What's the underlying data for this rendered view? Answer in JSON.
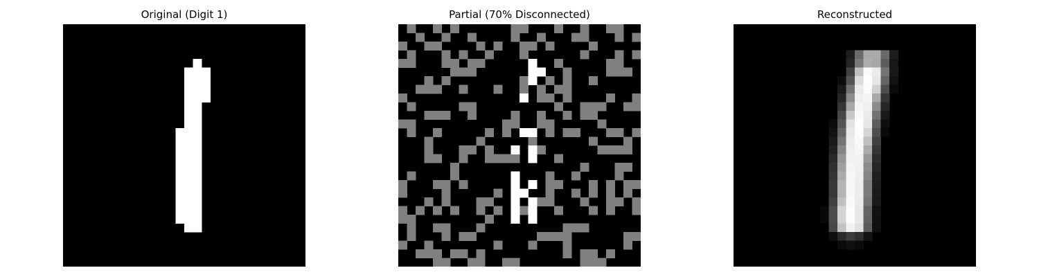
{
  "figure": {
    "panels": [
      {
        "title": "Original (Digit 1)",
        "kind": "binary-mask",
        "grid_size": 28,
        "cells": [
          [
            4,
            15,
            15
          ],
          [
            5,
            14,
            16
          ],
          [
            6,
            14,
            16
          ],
          [
            7,
            14,
            16
          ],
          [
            8,
            14,
            16
          ],
          [
            9,
            14,
            15
          ],
          [
            10,
            14,
            15
          ],
          [
            11,
            14,
            15
          ],
          [
            12,
            13,
            15
          ],
          [
            13,
            13,
            15
          ],
          [
            14,
            13,
            15
          ],
          [
            15,
            13,
            15
          ],
          [
            16,
            13,
            15
          ],
          [
            17,
            13,
            15
          ],
          [
            18,
            13,
            15
          ],
          [
            19,
            13,
            15
          ],
          [
            20,
            13,
            15
          ],
          [
            21,
            13,
            15
          ],
          [
            22,
            13,
            15
          ],
          [
            23,
            14,
            15
          ]
        ]
      },
      {
        "title": "Partial (70% Disconnected)",
        "kind": "binary-mask-with-noise",
        "grid_size": 28,
        "disconnected_fraction": 0.7,
        "white_cells": [
          [
            4,
            15
          ],
          [
            5,
            15
          ],
          [
            5,
            16
          ],
          [
            6,
            15
          ],
          [
            8,
            14
          ],
          [
            12,
            14
          ],
          [
            12,
            15
          ],
          [
            14,
            13
          ],
          [
            14,
            15
          ],
          [
            15,
            15
          ],
          [
            17,
            13
          ],
          [
            18,
            13
          ],
          [
            18,
            15
          ],
          [
            19,
            13
          ],
          [
            19,
            14
          ],
          [
            20,
            13
          ],
          [
            20,
            15
          ],
          [
            21,
            13
          ],
          [
            21,
            15
          ],
          [
            22,
            13
          ],
          [
            22,
            15
          ]
        ],
        "gray_seed": 70,
        "gray_density": 0.28
      },
      {
        "title": "Reconstructed",
        "kind": "grayscale-heatmap",
        "grid_size": 28,
        "stroke": [
          [
            3.5,
            16.0
          ],
          [
            5.0,
            15.8
          ],
          [
            6.5,
            15.6
          ],
          [
            8.0,
            15.2
          ],
          [
            9.5,
            14.9
          ],
          [
            11.0,
            14.6
          ],
          [
            12.5,
            14.4
          ],
          [
            14.0,
            14.2
          ],
          [
            15.5,
            14.0
          ],
          [
            17.0,
            13.9
          ],
          [
            18.5,
            13.8
          ],
          [
            20.0,
            13.8
          ],
          [
            21.5,
            13.6
          ],
          [
            23.0,
            13.6
          ]
        ]
      }
    ]
  }
}
